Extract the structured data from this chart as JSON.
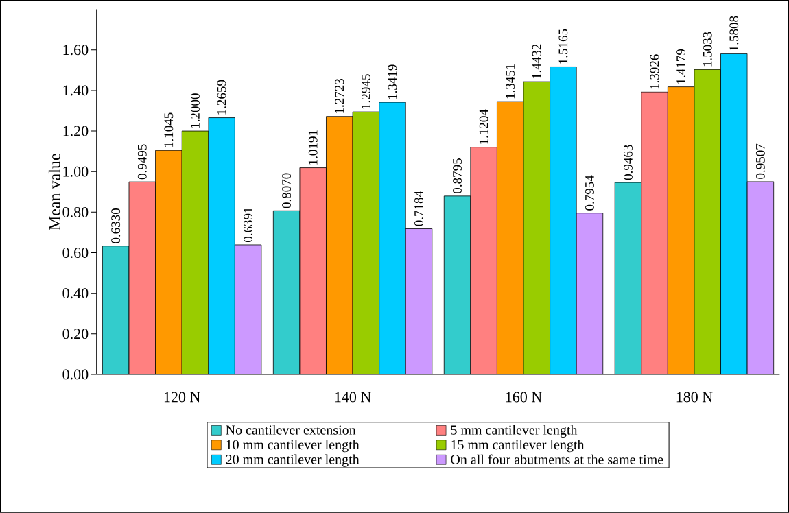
{
  "chart_data": {
    "type": "bar",
    "ylabel": "Mean value",
    "categories": [
      "120 N",
      "140 N",
      "160 N",
      "180 N"
    ],
    "series": [
      {
        "name": "No cantilever extension",
        "color": "#33cccc",
        "values": [
          0.633,
          0.807,
          0.8795,
          0.9463
        ],
        "value_labels": [
          "0.6330",
          "0.8070",
          "0.8795",
          "0.9463"
        ]
      },
      {
        "name": "5 mm cantilever length",
        "color": "#ff8080",
        "values": [
          0.9495,
          1.0191,
          1.1204,
          1.3926
        ],
        "value_labels": [
          "0.9495",
          "1.0191",
          "1.1204",
          "1.3926"
        ]
      },
      {
        "name": "10 mm cantilever length",
        "color": "#ff9900",
        "values": [
          1.1045,
          1.2723,
          1.3451,
          1.4179
        ],
        "value_labels": [
          "1.1045",
          "1.2723",
          "1.3451",
          "1.4179"
        ]
      },
      {
        "name": "15 mm cantilever length",
        "color": "#99cc00",
        "values": [
          1.2,
          1.2945,
          1.4432,
          1.5033
        ],
        "value_labels": [
          "1.2000",
          "1.2945",
          "1.4432",
          "1.5033"
        ]
      },
      {
        "name": "20 mm cantilever length",
        "color": "#00ccff",
        "values": [
          1.2659,
          1.3419,
          1.5165,
          1.5808
        ],
        "value_labels": [
          "1.2659",
          "1.3419",
          "1.5165",
          "1.5808"
        ]
      },
      {
        "name": "On all four abutments at the same time",
        "color": "#cc99ff",
        "values": [
          0.6391,
          0.7184,
          0.7954,
          0.9507
        ],
        "value_labels": [
          "0.6391",
          "0.7184",
          "0.7954",
          "0.9507"
        ]
      }
    ],
    "ylim": [
      0,
      1.8
    ],
    "yticks": [
      {
        "value": 0,
        "label": "0.00"
      },
      {
        "value": 0.2,
        "label": "0.20"
      },
      {
        "value": 0.4,
        "label": "0.40"
      },
      {
        "value": 0.6,
        "label": "0.60"
      },
      {
        "value": 0.8,
        "label": "0.80"
      },
      {
        "value": 1.0,
        "label": "1.00"
      },
      {
        "value": 1.2,
        "label": "1.20"
      },
      {
        "value": 1.4,
        "label": "1.40"
      },
      {
        "value": 1.6,
        "label": "1.60"
      }
    ],
    "grid": false,
    "legend": "bottom"
  }
}
